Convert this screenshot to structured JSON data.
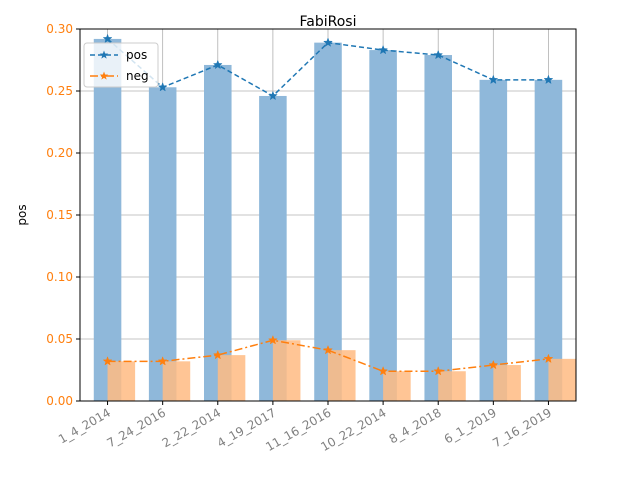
{
  "chart_data": {
    "type": "bar",
    "title": "FabiRosi",
    "xlabel": "",
    "ylabel": "pos",
    "ylim": [
      0,
      0.3
    ],
    "yticks": [
      "0.00",
      "0.05",
      "0.10",
      "0.15",
      "0.20",
      "0.25",
      "0.30"
    ],
    "ytick_values": [
      0,
      0.05,
      0.1,
      0.15,
      0.2,
      0.25,
      0.3
    ],
    "grid": true,
    "legend_position": "top-left",
    "categories": [
      "1_4_2014",
      "7_24_2016",
      "2_22_2014",
      "4_19_2017",
      "11_16_2016",
      "10_22_2014",
      "8_4_2018",
      "6_1_2019",
      "7_16_2019"
    ],
    "series": [
      {
        "name": "pos",
        "values": [
          0.292,
          0.253,
          0.271,
          0.246,
          0.289,
          0.283,
          0.279,
          0.259,
          0.259
        ],
        "bar_color": "#8fb8da",
        "line_color": "#1f77b4",
        "line_style": "dashed",
        "marker": "star"
      },
      {
        "name": "neg",
        "values": [
          0.032,
          0.032,
          0.037,
          0.049,
          0.041,
          0.024,
          0.024,
          0.029,
          0.034
        ],
        "bar_color": "#ffbb82",
        "line_color": "#ff7f0e",
        "line_style": "dashdot",
        "marker": "star"
      }
    ],
    "colors": {
      "ytick_color": "#ff7f0e",
      "xtick_color": "#808080",
      "grid_color": "#b0b0b0"
    }
  }
}
